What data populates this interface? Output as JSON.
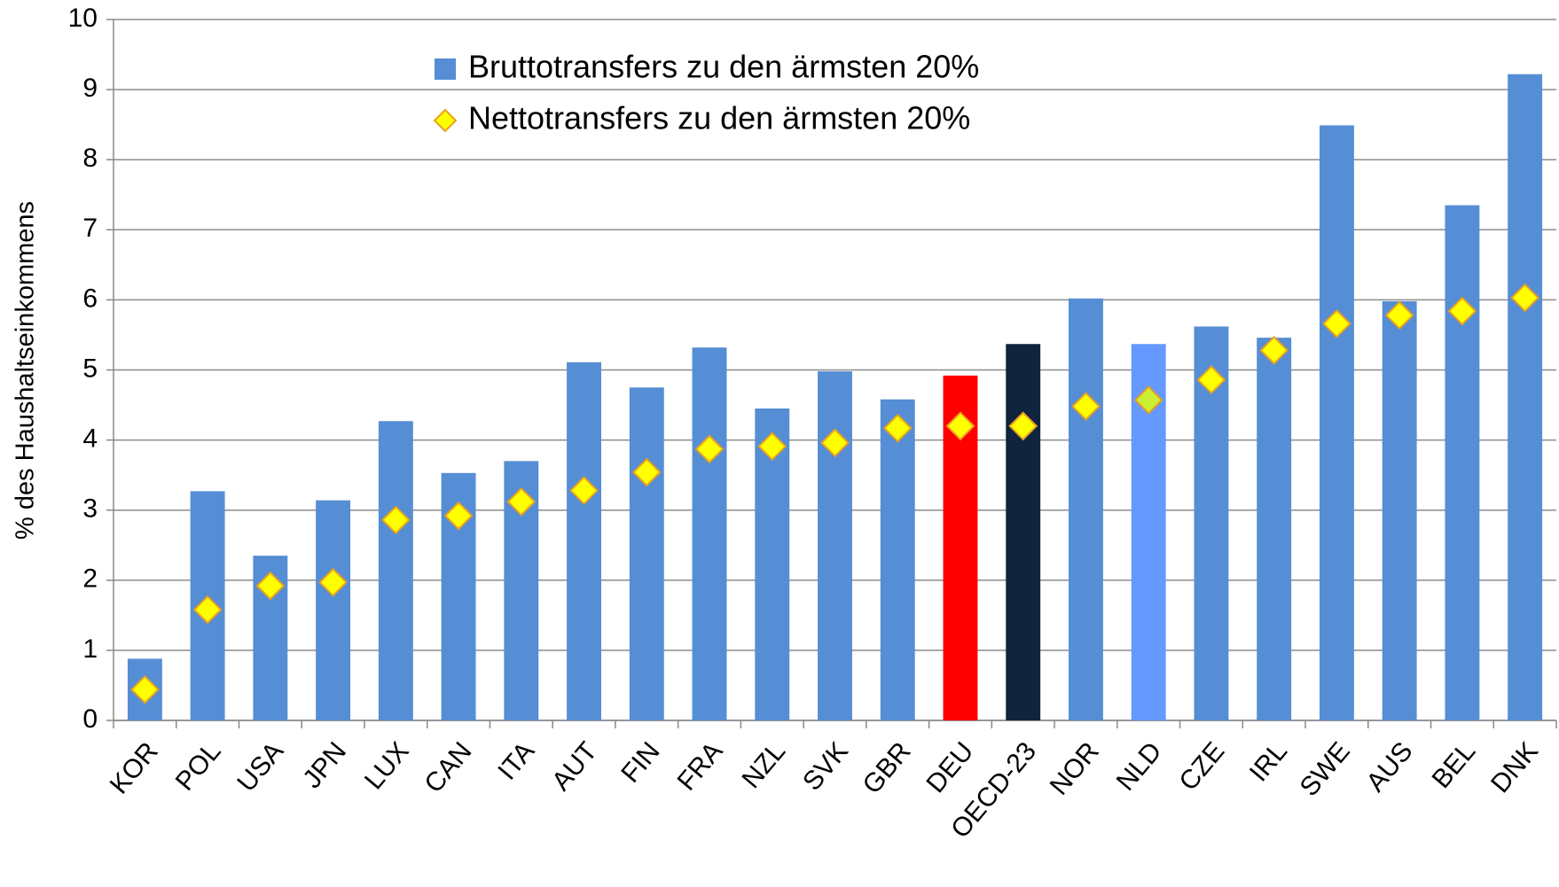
{
  "chart_data": {
    "type": "bar",
    "y_label": "% des Haushaltseinkommens",
    "categories": [
      "KOR",
      "POL",
      "USA",
      "JPN",
      "LUX",
      "CAN",
      "ITA",
      "AUT",
      "FIN",
      "FRA",
      "NZL",
      "SVK",
      "GBR",
      "DEU",
      "OECD-23",
      "NOR",
      "NLD",
      "CZE",
      "IRL",
      "SWE",
      "AUS",
      "BEL",
      "DNK"
    ],
    "series": [
      {
        "name": "Bruttotransfers zu den ärmsten 20%",
        "kind": "bar",
        "color": "#558ed5",
        "colors": [
          "#558ed5",
          "#558ed5",
          "#558ed5",
          "#558ed5",
          "#558ed5",
          "#558ed5",
          "#558ed5",
          "#558ed5",
          "#558ed5",
          "#558ed5",
          "#558ed5",
          "#558ed5",
          "#558ed5",
          "#ff0000",
          "#10243e",
          "#558ed5",
          "#6699ff",
          "#558ed5",
          "#558ed5",
          "#558ed5",
          "#558ed5",
          "#558ed5",
          "#558ed5"
        ],
        "values": [
          0.88,
          3.27,
          2.35,
          3.14,
          4.27,
          3.53,
          3.7,
          5.11,
          4.75,
          5.32,
          4.45,
          4.98,
          4.58,
          4.92,
          5.37,
          6.02,
          5.37,
          5.62,
          5.46,
          8.49,
          5.98,
          7.35,
          9.22
        ]
      },
      {
        "name": "Nettotransfers zu den ärmsten 20%",
        "kind": "marker",
        "color": "#ffff00",
        "colors": [
          "#ffff00",
          "#ffff00",
          "#ffff00",
          "#ffff00",
          "#ffff00",
          "#ffff00",
          "#ffff00",
          "#ffff00",
          "#ffff00",
          "#ffff00",
          "#ffff00",
          "#ffff00",
          "#ffff00",
          "#ffff00",
          "#ffff00",
          "#ffff00",
          "#ccee33",
          "#ffff00",
          "#ffff00",
          "#ffff00",
          "#ffff00",
          "#ffff00",
          "#ffff00"
        ],
        "values": [
          0.44,
          1.58,
          1.92,
          1.97,
          2.86,
          2.92,
          3.12,
          3.28,
          3.54,
          3.87,
          3.91,
          3.96,
          4.17,
          4.2,
          4.2,
          4.48,
          4.57,
          4.86,
          5.28,
          5.66,
          5.78,
          5.84,
          6.03
        ]
      }
    ],
    "ylim": [
      0,
      10
    ],
    "yticks": [
      0,
      1,
      2,
      3,
      4,
      5,
      6,
      7,
      8,
      9,
      10
    ],
    "grid": true
  }
}
